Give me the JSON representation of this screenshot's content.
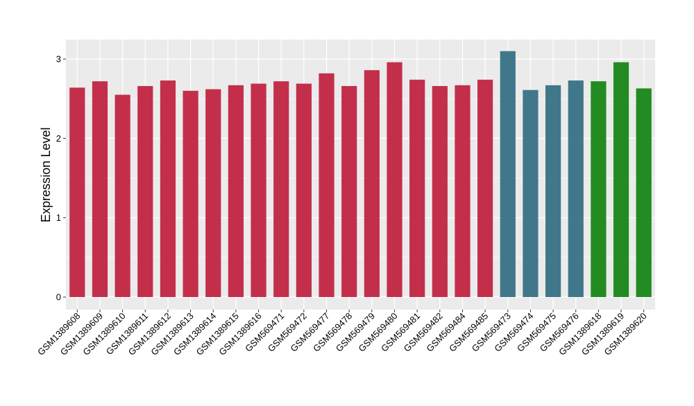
{
  "chart_data": {
    "type": "bar",
    "title": "",
    "xlabel": "",
    "ylabel": "Expression Level",
    "ylim": [
      0,
      3.2
    ],
    "yticks": [
      0,
      1,
      2,
      3
    ],
    "grid": true,
    "legend": "none",
    "categories": [
      "GSM1389608",
      "GSM1389609",
      "GSM1389610",
      "GSM1389611",
      "GSM1389612",
      "GSM1389613",
      "GSM1389614",
      "GSM1389615",
      "GSM1389616",
      "GSM569471",
      "GSM569472",
      "GSM569477",
      "GSM569478",
      "GSM569479",
      "GSM569480",
      "GSM569481",
      "GSM569482",
      "GSM569484",
      "GSM569485",
      "GSM569473",
      "GSM569474",
      "GSM569475",
      "GSM569476",
      "GSM1389618",
      "GSM1389619",
      "GSM1389620"
    ],
    "values": [
      2.64,
      2.72,
      2.55,
      2.66,
      2.73,
      2.6,
      2.62,
      2.67,
      2.69,
      2.72,
      2.69,
      2.82,
      2.66,
      2.86,
      2.96,
      2.74,
      2.66,
      2.67,
      2.74,
      3.1,
      2.61,
      2.67,
      2.73,
      2.72,
      2.96,
      2.63
    ],
    "bar_colors": [
      "#C32F4B",
      "#C32F4B",
      "#C32F4B",
      "#C32F4B",
      "#C32F4B",
      "#C32F4B",
      "#C32F4B",
      "#C32F4B",
      "#C32F4B",
      "#C32F4B",
      "#C32F4B",
      "#C32F4B",
      "#C32F4B",
      "#C32F4B",
      "#C32F4B",
      "#C32F4B",
      "#C32F4B",
      "#C32F4B",
      "#C32F4B",
      "#41778A",
      "#41778A",
      "#41778A",
      "#41778A",
      "#228B22",
      "#228B22",
      "#228B22"
    ],
    "colors": {
      "panel_background": "#EBEBEB",
      "gridline": "#FFFFFF",
      "tick": "#333333"
    }
  }
}
